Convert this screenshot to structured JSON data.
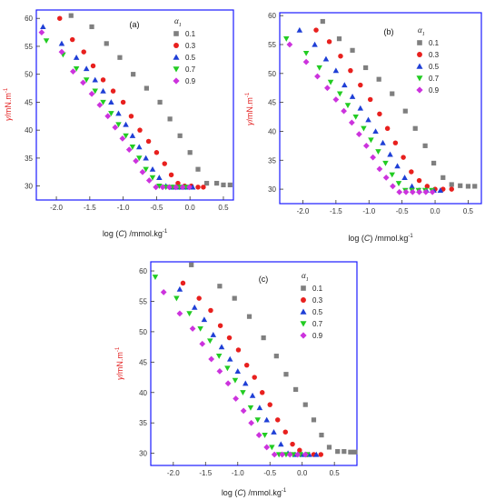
{
  "colors": {
    "series": [
      "#7f7f7f",
      "#e8201e",
      "#1f3fd6",
      "#22cc22",
      "#cc33dd"
    ],
    "frame": "#1a1aff",
    "ylabel": "#e32222"
  },
  "chart_data": [
    {
      "type": "scatter",
      "panel_label": "(a)",
      "xlabel_parts": [
        "log (",
        "C",
        ") /mmol.kg",
        "-1"
      ],
      "ylabel_parts": [
        "γ",
        "/mN.m",
        "-1"
      ],
      "xlim": [
        -2.3,
        0.65
      ],
      "ylim": [
        27.5,
        61.5
      ],
      "xticks": [
        -2.0,
        -1.5,
        -1.0,
        -0.5,
        0.0,
        0.5
      ],
      "xtick_labels": [
        "-2.0",
        "-1.5",
        "-1.0",
        "-0.5",
        "0.0",
        "0.5"
      ],
      "yticks": [
        30,
        35,
        40,
        45,
        50,
        55,
        60
      ],
      "ytick_labels": [
        "30",
        "35",
        "40",
        "45",
        "50",
        "55",
        "60"
      ],
      "legend": {
        "title": "α",
        "title_sub": "1",
        "placement": "top-right"
      },
      "series": [
        {
          "name": "0.1",
          "marker": "square",
          "x": [
            -1.78,
            -1.47,
            -1.25,
            -1.05,
            -0.85,
            -0.65,
            -0.45,
            -0.3,
            -0.15,
            0.0,
            0.12,
            0.25,
            0.4,
            0.5,
            0.6
          ],
          "y": [
            60.5,
            58.5,
            55.5,
            53.0,
            50.0,
            47.5,
            45.0,
            42.0,
            39.0,
            36.0,
            33.0,
            30.5,
            30.5,
            30.2,
            30.2
          ]
        },
        {
          "name": "0.3",
          "marker": "circle",
          "x": [
            -1.95,
            -1.76,
            -1.59,
            -1.45,
            -1.3,
            -1.15,
            -1.0,
            -0.88,
            -0.75,
            -0.62,
            -0.5,
            -0.38,
            -0.28,
            -0.18,
            -0.08,
            0.02,
            0.12,
            0.2
          ],
          "y": [
            60.0,
            56.2,
            54.0,
            51.5,
            49.0,
            47.0,
            45.0,
            42.5,
            40.0,
            38.0,
            36.0,
            34.0,
            32.0,
            30.5,
            30.0,
            30.0,
            29.8,
            29.8
          ]
        },
        {
          "name": "0.5",
          "marker": "triangle-up",
          "x": [
            -2.2,
            -1.92,
            -1.7,
            -1.55,
            -1.42,
            -1.3,
            -1.18,
            -1.07,
            -0.96,
            -0.86,
            -0.76,
            -0.66,
            -0.56,
            -0.46,
            -0.36,
            -0.26,
            -0.16,
            -0.06,
            0.04
          ],
          "y": [
            58.5,
            55.5,
            53.0,
            51.0,
            49.0,
            47.0,
            45.0,
            43.0,
            41.0,
            39.0,
            37.0,
            35.0,
            33.0,
            31.5,
            30.0,
            29.8,
            29.8,
            29.8,
            29.8
          ]
        },
        {
          "name": "0.7",
          "marker": "triangle-down",
          "x": [
            -2.15,
            -1.9,
            -1.7,
            -1.55,
            -1.42,
            -1.3,
            -1.18,
            -1.07,
            -0.96,
            -0.86,
            -0.76,
            -0.66,
            -0.56,
            -0.46,
            -0.36,
            -0.26,
            -0.16,
            -0.06
          ],
          "y": [
            56.0,
            53.5,
            51.0,
            49.0,
            47.0,
            45.0,
            43.0,
            41.0,
            39.0,
            37.0,
            35.0,
            33.0,
            31.5,
            30.0,
            29.8,
            29.8,
            29.8,
            29.8
          ]
        },
        {
          "name": "0.9",
          "marker": "diamond",
          "x": [
            -2.22,
            -1.92,
            -1.75,
            -1.6,
            -1.47,
            -1.35,
            -1.23,
            -1.12,
            -1.01,
            -0.91,
            -0.81,
            -0.71,
            -0.61,
            -0.51,
            -0.41,
            -0.31,
            -0.21,
            -0.11,
            -0.01
          ],
          "y": [
            57.5,
            54.0,
            50.5,
            48.5,
            46.5,
            44.5,
            42.5,
            40.5,
            38.5,
            36.5,
            34.5,
            32.5,
            31.0,
            29.8,
            29.8,
            29.8,
            29.8,
            29.8,
            29.8
          ]
        }
      ]
    },
    {
      "type": "scatter",
      "panel_label": "(b)",
      "xlabel_parts": [
        "log (",
        "C",
        ") /mmol.kg",
        "-1"
      ],
      "ylabel_parts": [
        "γ",
        "/mN.m",
        "-1"
      ],
      "xlim": [
        -2.35,
        0.7
      ],
      "ylim": [
        27.5,
        60.5
      ],
      "xticks": [
        -2.0,
        -1.5,
        -1.0,
        -0.5,
        0.0,
        0.5
      ],
      "xtick_labels": [
        "-2.0",
        "-1.5",
        "-1.0",
        "-0.5",
        "0.0",
        "0.5"
      ],
      "yticks": [
        30,
        35,
        40,
        45,
        50,
        55,
        60
      ],
      "ytick_labels": [
        "30",
        "35",
        "40",
        "45",
        "50",
        "55",
        "60"
      ],
      "legend": {
        "title": "α",
        "title_sub": "1",
        "placement": "top-right"
      },
      "series": [
        {
          "name": "0.1",
          "marker": "square",
          "x": [
            -1.7,
            -1.45,
            -1.25,
            -1.05,
            -0.85,
            -0.65,
            -0.45,
            -0.3,
            -0.15,
            -0.02,
            0.12,
            0.25,
            0.38,
            0.5,
            0.6
          ],
          "y": [
            59.0,
            56.0,
            54.0,
            51.0,
            49.0,
            46.5,
            43.5,
            40.5,
            37.5,
            34.5,
            32.0,
            30.8,
            30.6,
            30.5,
            30.5
          ]
        },
        {
          "name": "0.3",
          "marker": "circle",
          "x": [
            -1.8,
            -1.6,
            -1.43,
            -1.28,
            -1.13,
            -0.98,
            -0.84,
            -0.72,
            -0.6,
            -0.48,
            -0.36,
            -0.24,
            -0.12,
            0.0,
            0.12,
            0.25
          ],
          "y": [
            57.5,
            55.5,
            53.0,
            50.5,
            48.0,
            45.5,
            43.0,
            40.5,
            38.0,
            35.5,
            33.0,
            31.5,
            30.5,
            30.0,
            30.0,
            30.0
          ]
        },
        {
          "name": "0.5",
          "marker": "triangle-up",
          "x": [
            -2.05,
            -1.82,
            -1.65,
            -1.5,
            -1.37,
            -1.25,
            -1.13,
            -1.01,
            -0.9,
            -0.79,
            -0.68,
            -0.57,
            -0.46,
            -0.35,
            -0.24,
            -0.13,
            -0.02,
            0.08
          ],
          "y": [
            57.5,
            55.0,
            52.5,
            50.5,
            48.0,
            46.0,
            44.0,
            42.0,
            40.0,
            38.0,
            36.0,
            34.0,
            32.0,
            30.5,
            29.8,
            29.8,
            29.8,
            29.8
          ]
        },
        {
          "name": "0.7",
          "marker": "triangle-down",
          "x": [
            -2.25,
            -1.95,
            -1.75,
            -1.58,
            -1.44,
            -1.32,
            -1.2,
            -1.08,
            -0.97,
            -0.86,
            -0.75,
            -0.65,
            -0.55,
            -0.45,
            -0.35,
            -0.25,
            -0.15,
            -0.05
          ],
          "y": [
            56.0,
            53.5,
            51.0,
            48.5,
            46.5,
            44.5,
            42.5,
            40.5,
            38.5,
            36.5,
            34.5,
            32.5,
            31.0,
            29.8,
            29.8,
            29.8,
            29.8,
            29.8
          ]
        },
        {
          "name": "0.9",
          "marker": "diamond",
          "x": [
            -2.2,
            -1.95,
            -1.78,
            -1.63,
            -1.5,
            -1.38,
            -1.26,
            -1.15,
            -1.04,
            -0.94,
            -0.84,
            -0.74,
            -0.64,
            -0.54,
            -0.44,
            -0.34,
            -0.24,
            -0.14,
            -0.04
          ],
          "y": [
            55.0,
            52.0,
            49.5,
            47.5,
            45.5,
            43.5,
            41.5,
            39.5,
            37.5,
            35.5,
            33.5,
            32.0,
            30.5,
            29.5,
            29.5,
            29.5,
            29.5,
            29.5,
            29.5
          ]
        }
      ]
    },
    {
      "type": "scatter",
      "panel_label": "(c)",
      "xlabel_parts": [
        "log (",
        "C",
        ") /mmol.kg",
        "-1"
      ],
      "ylabel_parts": [
        "γ",
        "/mN.m",
        "-1"
      ],
      "xlim": [
        -2.35,
        0.85
      ],
      "ylim": [
        28.0,
        61.5
      ],
      "xticks": [
        -2.0,
        -1.5,
        -1.0,
        -0.5,
        0.0,
        0.5
      ],
      "xtick_labels": [
        "-2.0",
        "-1.5",
        "-1.0",
        "-0.5",
        "0.0",
        "0.5"
      ],
      "yticks": [
        30,
        35,
        40,
        45,
        50,
        55,
        60
      ],
      "ytick_labels": [
        "30",
        "35",
        "40",
        "45",
        "50",
        "55",
        "60"
      ],
      "legend": {
        "title": "α",
        "title_sub": "1",
        "placement": "top-right"
      },
      "series": [
        {
          "name": "0.1",
          "marker": "square",
          "x": [
            -1.72,
            -1.28,
            -1.05,
            -0.82,
            -0.6,
            -0.4,
            -0.25,
            -0.1,
            0.05,
            0.18,
            0.3,
            0.42,
            0.55,
            0.65,
            0.75,
            0.82
          ],
          "y": [
            61.0,
            57.5,
            55.5,
            52.5,
            49.0,
            46.0,
            43.0,
            40.5,
            38.0,
            35.5,
            33.0,
            31.0,
            30.3,
            30.3,
            30.2,
            30.2
          ]
        },
        {
          "name": "0.3",
          "marker": "circle",
          "x": [
            -1.85,
            -1.6,
            -1.42,
            -1.27,
            -1.13,
            -0.99,
            -0.86,
            -0.74,
            -0.62,
            -0.5,
            -0.38,
            -0.26,
            -0.15,
            -0.04,
            0.07,
            0.18,
            0.29
          ],
          "y": [
            58.0,
            55.5,
            53.5,
            51.0,
            49.0,
            47.0,
            44.5,
            42.5,
            40.0,
            38.0,
            35.5,
            33.5,
            31.5,
            30.5,
            29.8,
            29.8,
            29.8
          ]
        },
        {
          "name": "0.5",
          "marker": "triangle-up",
          "x": [
            -1.9,
            -1.67,
            -1.52,
            -1.38,
            -1.25,
            -1.12,
            -1.0,
            -0.88,
            -0.77,
            -0.66,
            -0.55,
            -0.44,
            -0.33,
            -0.22,
            -0.11,
            0.0,
            0.11,
            0.22
          ],
          "y": [
            57.0,
            54.0,
            52.0,
            49.5,
            47.5,
            45.5,
            43.5,
            41.5,
            39.5,
            37.5,
            35.5,
            33.5,
            31.5,
            30.0,
            29.8,
            29.8,
            29.8,
            29.8
          ]
        },
        {
          "name": "0.7",
          "marker": "triangle-down",
          "x": [
            -2.28,
            -1.95,
            -1.75,
            -1.58,
            -1.43,
            -1.29,
            -1.16,
            -1.04,
            -0.92,
            -0.8,
            -0.69,
            -0.58,
            -0.47,
            -0.36,
            -0.25,
            -0.14,
            -0.03,
            0.08
          ],
          "y": [
            59.0,
            55.5,
            53.0,
            50.5,
            48.5,
            46.0,
            44.0,
            42.0,
            40.0,
            37.5,
            35.5,
            33.0,
            31.0,
            29.8,
            29.8,
            29.8,
            29.8,
            29.8
          ]
        },
        {
          "name": "0.9",
          "marker": "diamond",
          "x": [
            -2.15,
            -1.9,
            -1.7,
            -1.55,
            -1.41,
            -1.28,
            -1.15,
            -1.03,
            -0.91,
            -0.79,
            -0.67,
            -0.55,
            -0.43,
            -0.31,
            -0.19,
            -0.07,
            0.05
          ],
          "y": [
            56.5,
            53.0,
            50.5,
            48.0,
            45.5,
            43.5,
            41.5,
            39.0,
            37.0,
            35.0,
            33.0,
            31.0,
            29.8,
            29.8,
            29.8,
            29.8,
            29.8
          ]
        }
      ]
    }
  ]
}
